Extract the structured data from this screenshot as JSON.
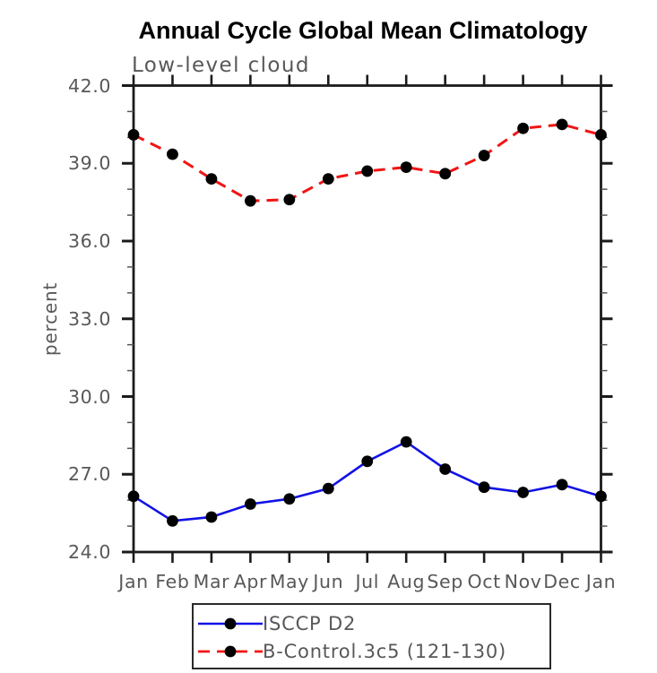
{
  "title": "Annual Cycle Global Mean Climatology",
  "subtitle": "Low-level cloud",
  "chart_data": {
    "type": "line",
    "title": "Annual Cycle Global Mean Climatology",
    "subtitle": "Low-level cloud",
    "xlabel": "",
    "ylabel": "percent",
    "x_categories": [
      "Jan",
      "Feb",
      "Mar",
      "Apr",
      "May",
      "Jun",
      "Jul",
      "Aug",
      "Sep",
      "Oct",
      "Nov",
      "Dec",
      "Jan"
    ],
    "ylim": [
      24.0,
      42.0
    ],
    "ytick_major_interval": 3.0,
    "ytick_minor_interval": 1.0,
    "ytick_labels": [
      "24.0",
      "27.0",
      "30.0",
      "33.0",
      "36.0",
      "39.0",
      "42.0"
    ],
    "grid": false,
    "legend_position": "bottom-center",
    "series": [
      {
        "name": "ISCCP D2",
        "color": "#1212e6",
        "line_style": "solid",
        "marker": "filled-circle",
        "marker_color": "#000000",
        "values": [
          26.15,
          25.2,
          25.35,
          25.85,
          26.05,
          26.45,
          27.5,
          28.25,
          27.2,
          26.5,
          26.3,
          26.6,
          26.15
        ]
      },
      {
        "name": "B-Control.3c5 (121-130)",
        "color": "#f21414",
        "line_style": "dashed",
        "marker": "filled-circle",
        "marker_color": "#000000",
        "values": [
          40.1,
          39.35,
          38.4,
          37.55,
          37.6,
          38.4,
          38.7,
          38.85,
          38.6,
          39.3,
          40.35,
          40.5,
          40.1
        ]
      }
    ]
  }
}
